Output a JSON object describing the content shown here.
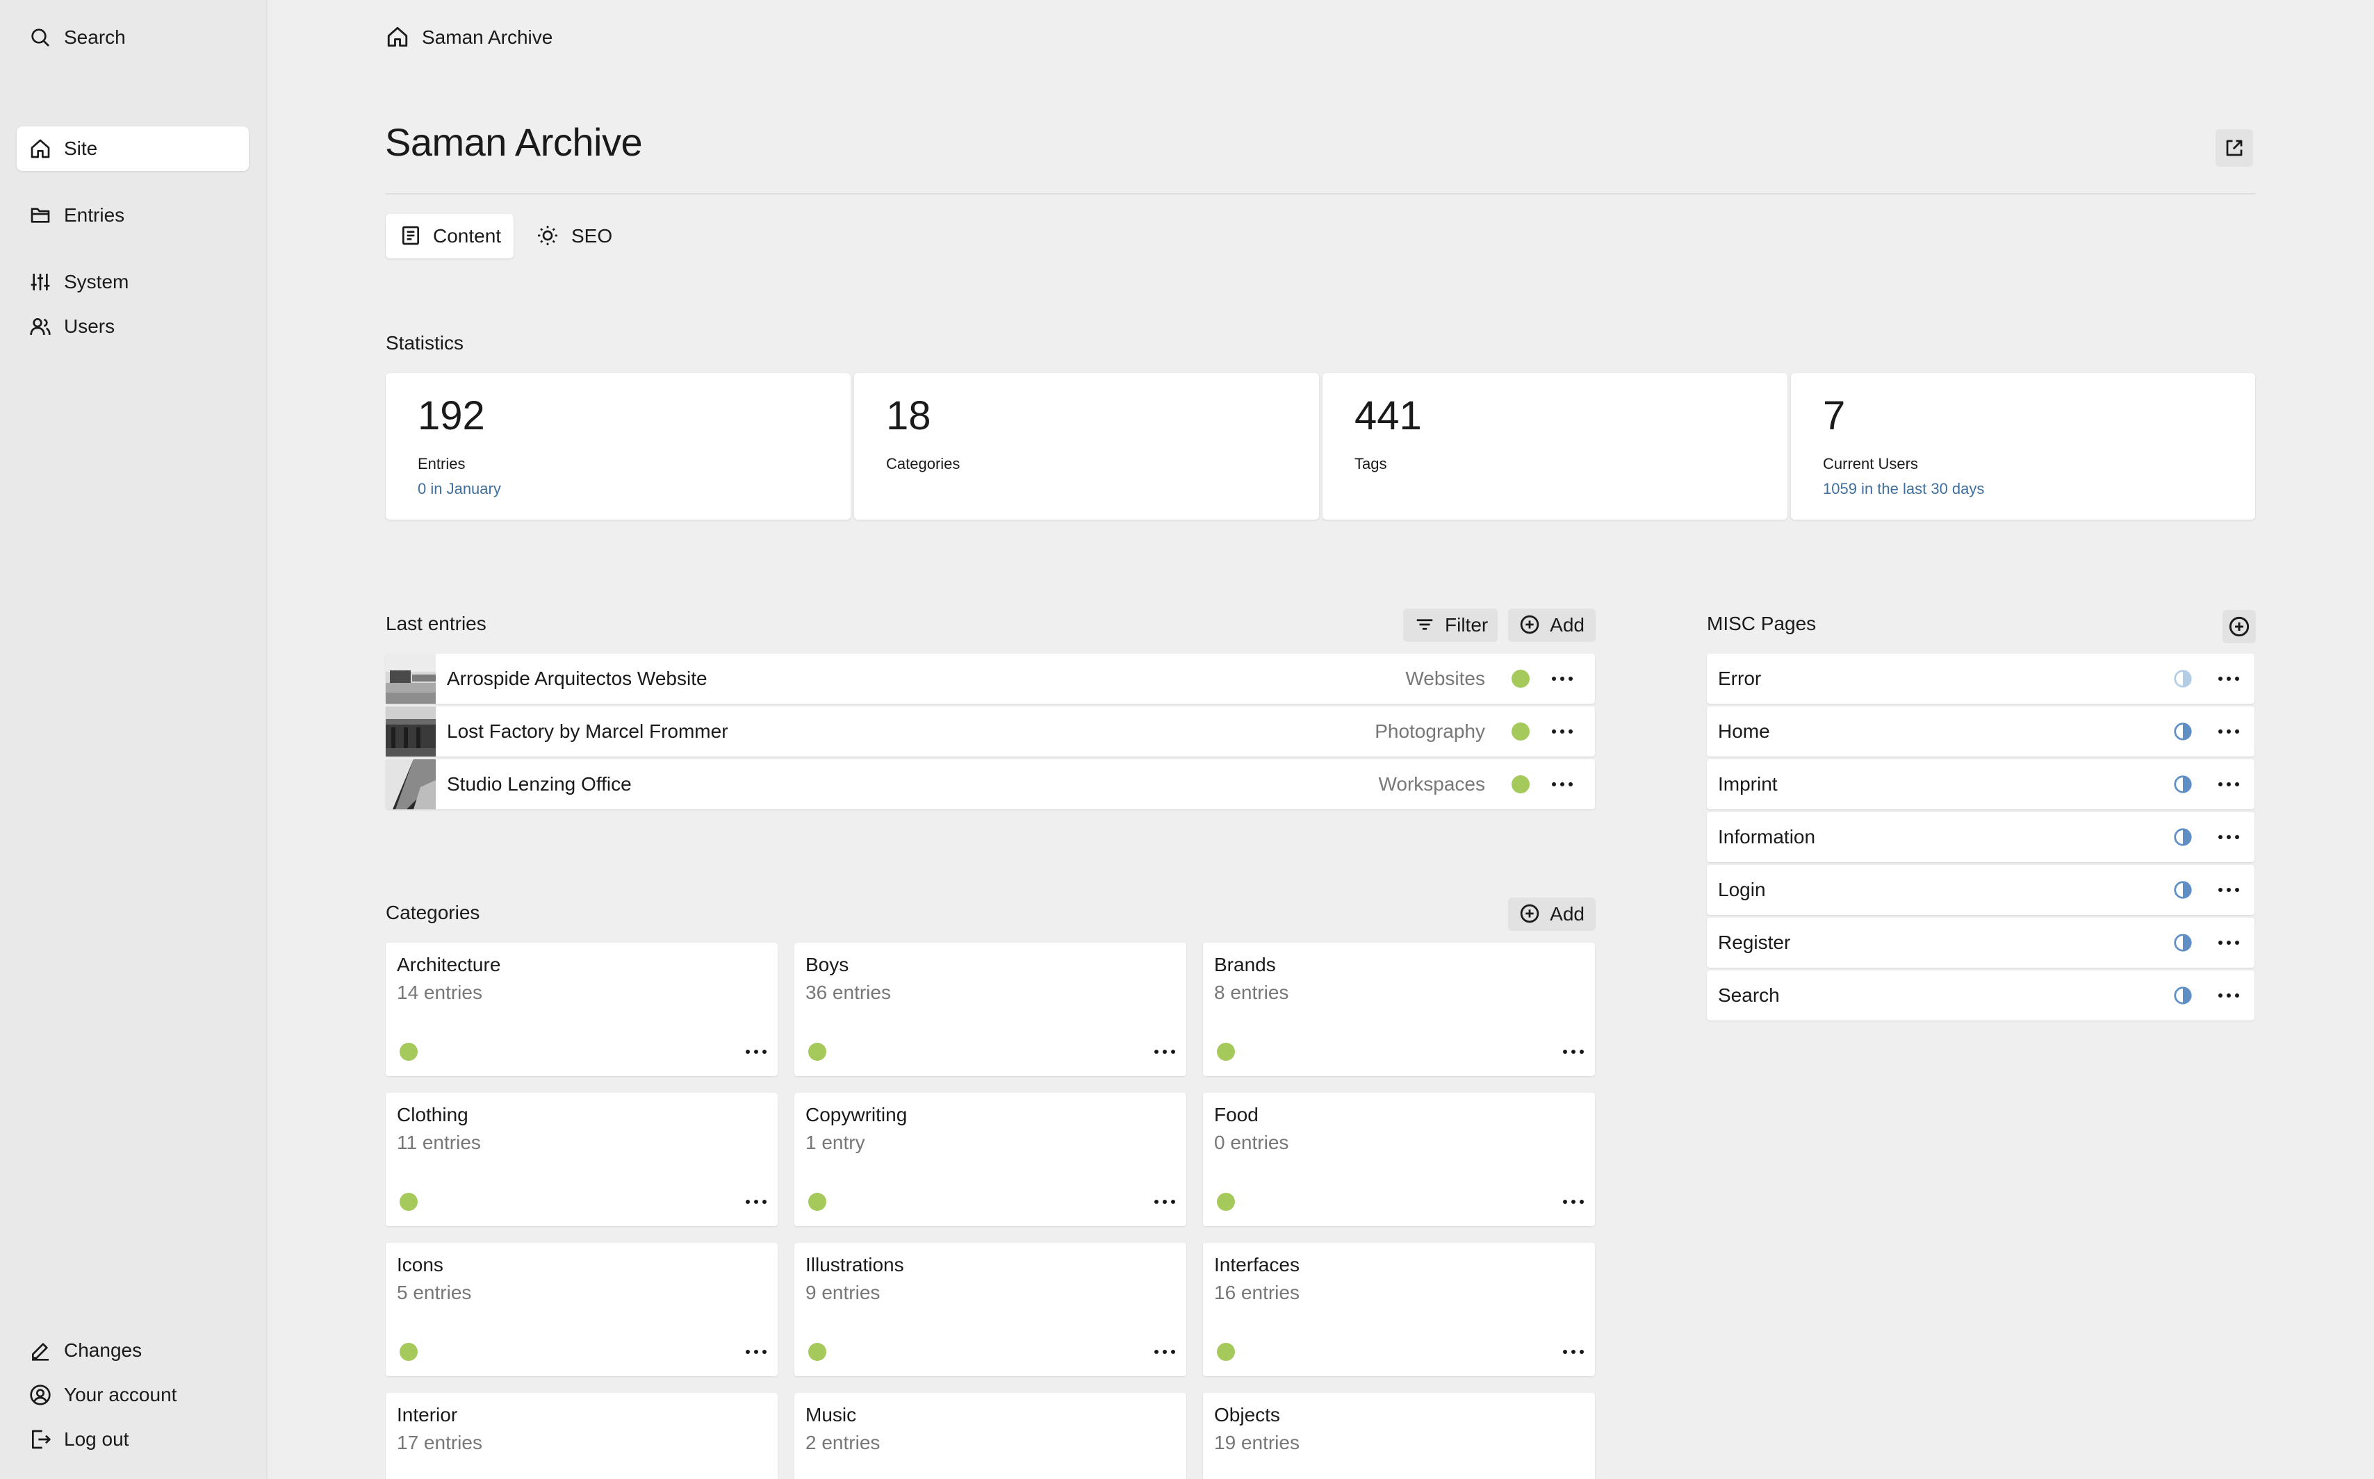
{
  "sidebar": {
    "search_label": "Search",
    "items": [
      {
        "label": "Site",
        "icon": "home-icon",
        "active": true
      },
      {
        "label": "Entries",
        "icon": "folder-icon"
      },
      {
        "label": "System",
        "icon": "sliders-icon"
      },
      {
        "label": "Users",
        "icon": "users-icon"
      }
    ],
    "bottom": [
      {
        "label": "Changes",
        "icon": "pencil-icon"
      },
      {
        "label": "Your account",
        "icon": "account-icon"
      },
      {
        "label": "Log out",
        "icon": "logout-icon"
      }
    ]
  },
  "breadcrumb": {
    "label": "Saman Archive",
    "icon": "home-icon"
  },
  "page": {
    "title": "Saman Archive"
  },
  "tabs": [
    {
      "label": "Content",
      "icon": "document-icon",
      "active": true
    },
    {
      "label": "SEO",
      "icon": "sun-icon"
    }
  ],
  "statistics": {
    "label": "Statistics",
    "cards": [
      {
        "value": "192",
        "label": "Entries",
        "info": "0 in January"
      },
      {
        "value": "18",
        "label": "Categories",
        "info": ""
      },
      {
        "value": "441",
        "label": "Tags",
        "info": ""
      },
      {
        "value": "7",
        "label": "Current Users",
        "info": "1059 in the last 30 days"
      }
    ]
  },
  "last_entries": {
    "label": "Last entries",
    "filter_label": "Filter",
    "add_label": "Add",
    "items": [
      {
        "title": "Arrospide Arquitectos Website",
        "tag": "Websites",
        "status_color": "#a6c95b"
      },
      {
        "title": "Lost Factory by Marcel Frommer",
        "tag": "Photography",
        "status_color": "#a6c95b"
      },
      {
        "title": "Studio Lenzing Office",
        "tag": "Workspaces",
        "status_color": "#a6c95b"
      }
    ]
  },
  "categories": {
    "label": "Categories",
    "add_label": "Add",
    "items": [
      {
        "name": "Architecture",
        "count": "14 entries"
      },
      {
        "name": "Boys",
        "count": "36 entries"
      },
      {
        "name": "Brands",
        "count": "8 entries"
      },
      {
        "name": "Clothing",
        "count": "11 entries"
      },
      {
        "name": "Copywriting",
        "count": "1 entry"
      },
      {
        "name": "Food",
        "count": "0 entries"
      },
      {
        "name": "Icons",
        "count": "5 entries"
      },
      {
        "name": "Illustrations",
        "count": "9 entries"
      },
      {
        "name": "Interfaces",
        "count": "16 entries"
      },
      {
        "name": "Interior",
        "count": "17 entries"
      },
      {
        "name": "Music",
        "count": "2 entries"
      },
      {
        "name": "Objects",
        "count": "19 entries"
      }
    ]
  },
  "misc_pages": {
    "label": "MISC Pages",
    "items": [
      {
        "title": "Error",
        "status": "draft"
      },
      {
        "title": "Home",
        "status": "unlisted"
      },
      {
        "title": "Imprint",
        "status": "unlisted"
      },
      {
        "title": "Information",
        "status": "unlisted"
      },
      {
        "title": "Login",
        "status": "unlisted"
      },
      {
        "title": "Register",
        "status": "unlisted"
      },
      {
        "title": "Search",
        "status": "unlisted"
      }
    ]
  },
  "colors": {
    "status_green": "#a6c95b",
    "link_blue": "#3f6f9c",
    "unlisted_blue": "#5f8fc4",
    "draft_blue": "#b4cde6"
  }
}
